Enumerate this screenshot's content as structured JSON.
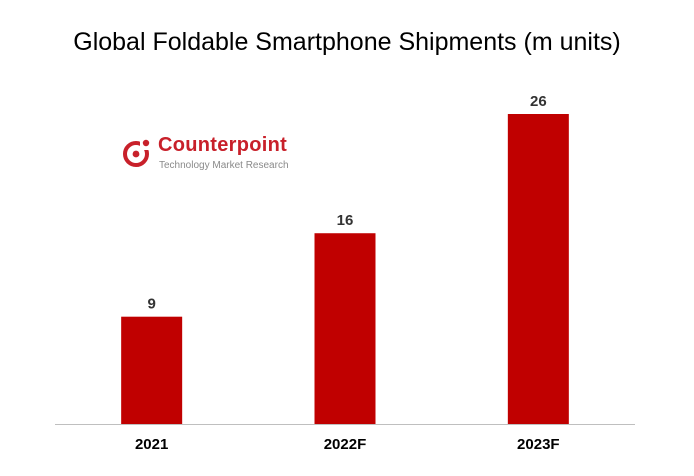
{
  "chart_data": {
    "type": "bar",
    "title": "Global Foldable Smartphone Shipments (m units)",
    "categories": [
      "2021",
      "2022F",
      "2023F"
    ],
    "values": [
      9,
      16,
      26
    ],
    "data_labels": [
      "9",
      "16",
      "26"
    ],
    "xlabel": "",
    "ylabel": "",
    "ylim": [
      0,
      26
    ],
    "grid": false,
    "legend": "none",
    "bar_color": "#c00000",
    "axis_color": "#bfbfbf"
  },
  "logo": {
    "name": "Counterpoint",
    "tagline": "Technology Market Research",
    "icon": "counterpoint-logo-icon",
    "brand_color": "#c8202a"
  }
}
